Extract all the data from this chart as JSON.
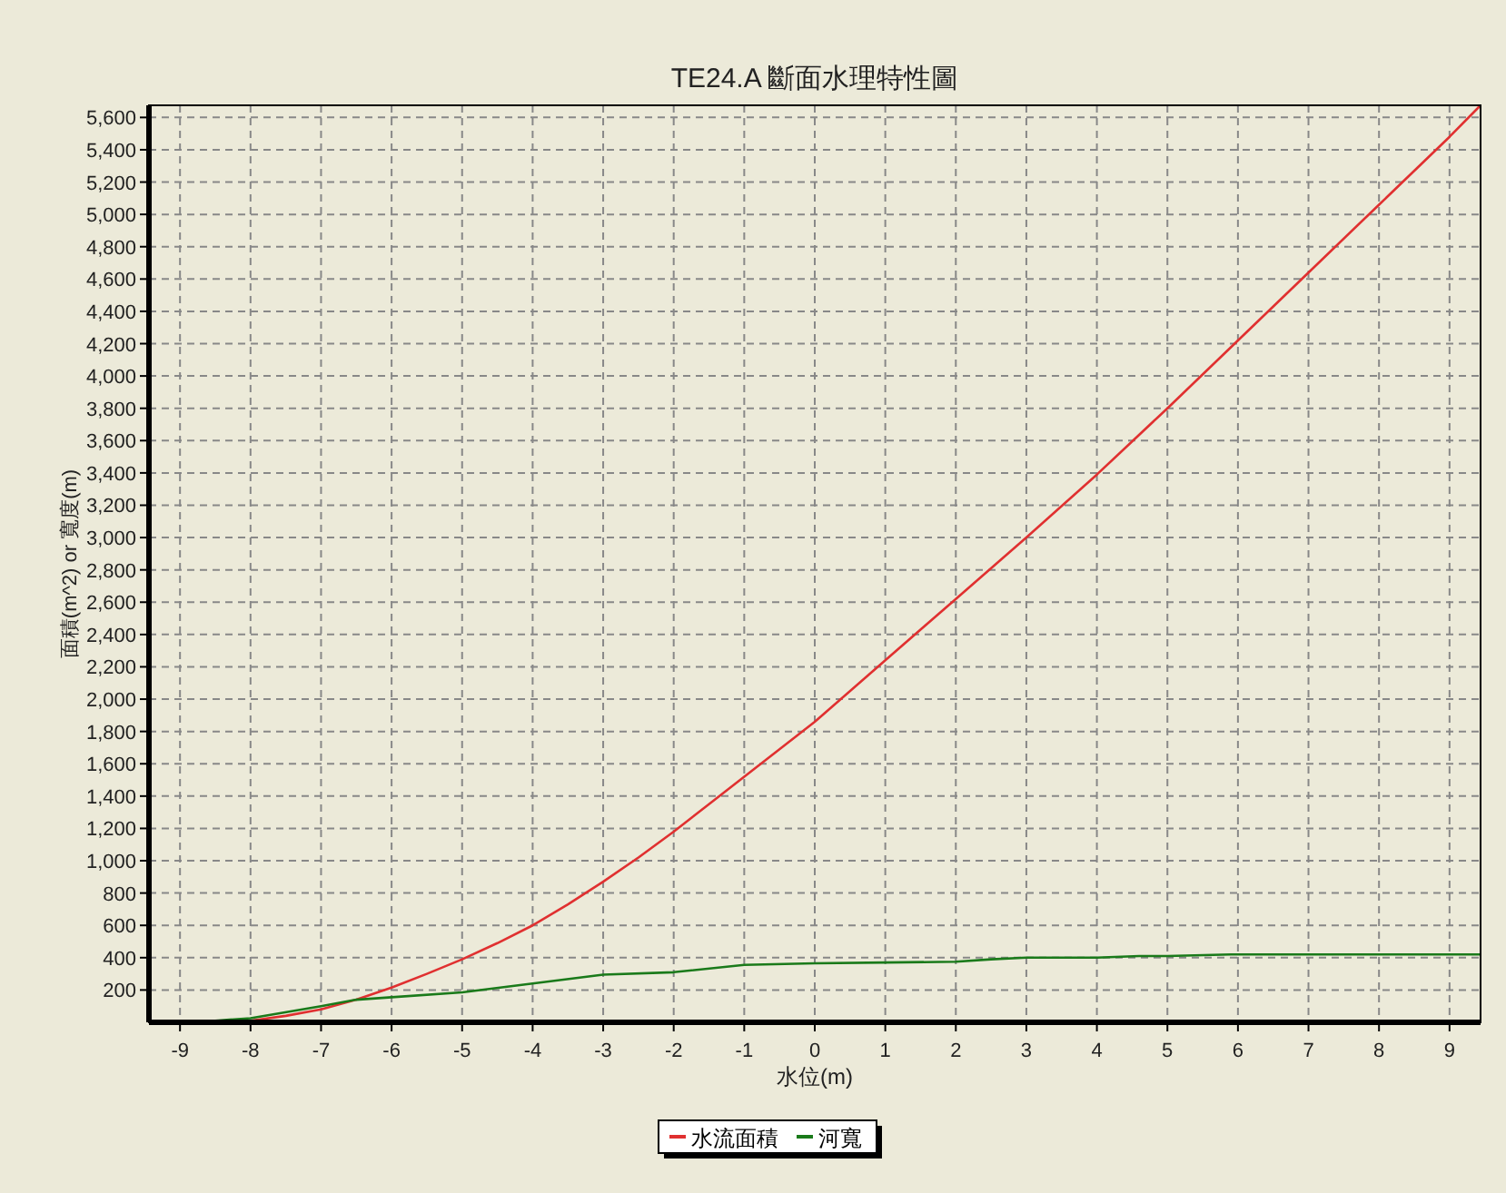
{
  "chart_data": {
    "type": "line",
    "title": "TE24.A   斷面水理特性圖",
    "xlabel": "水位(m)",
    "ylabel": "面積(m^2) or 寬度(m)",
    "xlim": [
      -9.44,
      9.44
    ],
    "xticks": [
      -9,
      -8,
      -7,
      -6,
      -5,
      -4,
      -3,
      -2,
      -1,
      0,
      1,
      2,
      3,
      4,
      5,
      6,
      7,
      8,
      9
    ],
    "ylim": [
      0,
      5675
    ],
    "yticks": [
      200,
      400,
      600,
      800,
      {
        "value": 1000,
        "label": "1,000"
      },
      {
        "value": 1200,
        "label": "1,200"
      },
      {
        "value": 1400,
        "label": "1,400"
      },
      {
        "value": 1600,
        "label": "1,600"
      },
      {
        "value": 1800,
        "label": "1,800"
      },
      {
        "value": 2000,
        "label": "2,000"
      },
      {
        "value": 2200,
        "label": "2,200"
      },
      {
        "value": 2400,
        "label": "2,400"
      },
      {
        "value": 2600,
        "label": "2,600"
      },
      {
        "value": 2800,
        "label": "2,800"
      },
      {
        "value": 3000,
        "label": "3,000"
      },
      {
        "value": 3200,
        "label": "3,200"
      },
      {
        "value": 3400,
        "label": "3,400"
      },
      {
        "value": 3600,
        "label": "3,600"
      },
      {
        "value": 3800,
        "label": "3,800"
      },
      {
        "value": 4000,
        "label": "4,000"
      },
      {
        "value": 4200,
        "label": "4,200"
      },
      {
        "value": 4400,
        "label": "4,400"
      },
      {
        "value": 4600,
        "label": "4,600"
      },
      {
        "value": 4800,
        "label": "4,800"
      },
      {
        "value": 5000,
        "label": "5,000"
      },
      {
        "value": 5200,
        "label": "5,200"
      },
      {
        "value": 5400,
        "label": "5,400"
      },
      {
        "value": 5600,
        "label": "5,600"
      }
    ],
    "grid": true,
    "legend": "bottom",
    "line_style": "solid",
    "series": [
      {
        "name": "水流面積",
        "color": "#e03030",
        "x": [
          -8.1,
          -8,
          -7.5,
          -7,
          -6.5,
          -6,
          -5.5,
          -5,
          -4.5,
          -4,
          -3.5,
          -3,
          -2.5,
          -2,
          -1.5,
          -1,
          -0.5,
          0,
          1,
          2,
          3,
          4,
          5,
          6,
          7,
          8,
          9,
          9.44
        ],
        "values": [
          0,
          10,
          40,
          80,
          140,
          215,
          300,
          390,
          490,
          600,
          730,
          870,
          1020,
          1180,
          1350,
          1520,
          1690,
          1860,
          2240,
          2620,
          3000,
          3390,
          3800,
          4220,
          4640,
          5060,
          5480,
          5675
        ]
      },
      {
        "name": "河寬",
        "color": "#1a7a1a",
        "x": [
          -8.5,
          -8,
          -7,
          -6.5,
          -6,
          -5,
          -4,
          -3,
          -2,
          -1,
          0,
          1,
          2,
          2.5,
          3,
          4,
          4.6,
          5,
          5.9,
          9.44
        ],
        "values": [
          10,
          25,
          100,
          140,
          155,
          185,
          240,
          295,
          310,
          355,
          365,
          370,
          375,
          390,
          400,
          400,
          410,
          410,
          420,
          420
        ]
      }
    ]
  }
}
